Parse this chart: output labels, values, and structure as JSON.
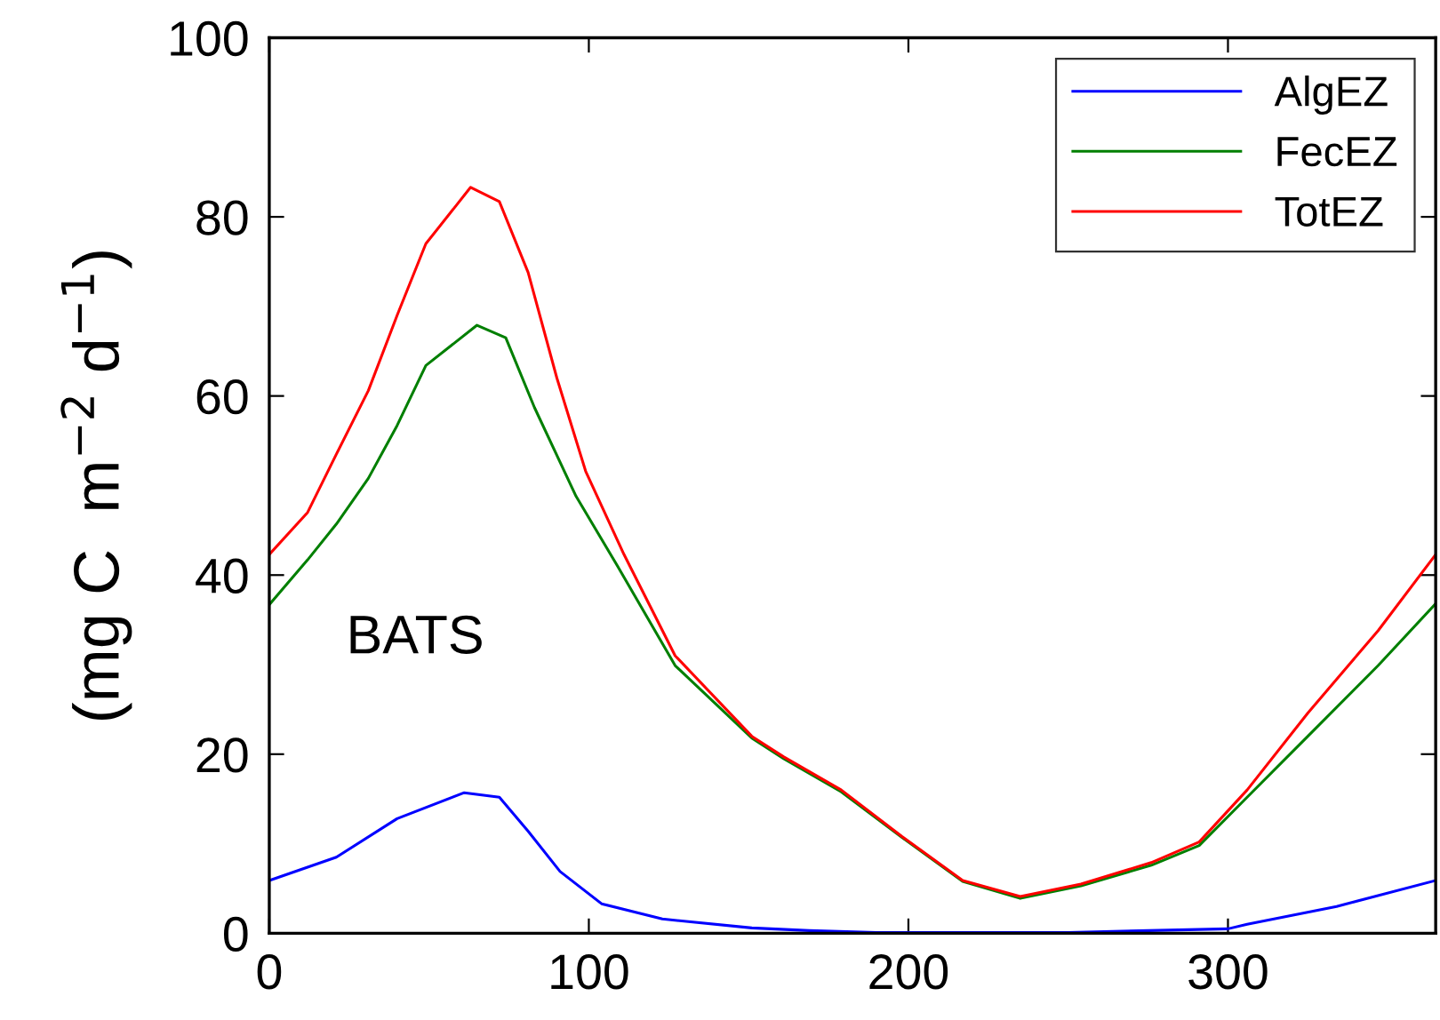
{
  "chart_data": {
    "type": "line",
    "ylabel": "(mg C  m$^{−2}$ d$^{−1}$)",
    "xlim": [
      0,
      365
    ],
    "ylim": [
      0,
      100
    ],
    "xticks": [
      0,
      100,
      200,
      300
    ],
    "yticks": [
      0,
      20,
      40,
      60,
      80,
      100
    ],
    "grid": false,
    "legend": "top right",
    "marker": "none",
    "line_style": "solid",
    "annotations": [
      "BATS"
    ],
    "series": [
      {
        "name": "AlgEZ",
        "color": "#0000ff",
        "x": [
          0,
          21,
          40,
          61,
          72,
          81,
          91,
          104,
          123,
          151,
          169,
          190,
          250,
          300,
          306,
          334,
          365
        ],
        "values": [
          5.9,
          8.5,
          12.8,
          15.7,
          15.2,
          11.4,
          6.9,
          3.3,
          1.6,
          0.6,
          0.3,
          0.1,
          0.1,
          0.5,
          1,
          3,
          5.9
        ]
      },
      {
        "name": "FecEZ",
        "color": "#007f00",
        "x": [
          0,
          12,
          21,
          31,
          40,
          49,
          65,
          74,
          83,
          96,
          109,
          127,
          151,
          161,
          179,
          198,
          217,
          235,
          254,
          276,
          291,
          306,
          325,
          347,
          365
        ],
        "values": [
          36.7,
          41.7,
          45.7,
          50.8,
          56.7,
          63.4,
          67.9,
          66.5,
          58.7,
          48.8,
          41,
          29.9,
          21.8,
          19.5,
          15.8,
          10.7,
          5.8,
          3.9,
          5.3,
          7.6,
          9.8,
          15.2,
          22,
          29.9,
          36.8
        ]
      },
      {
        "name": "TotEZ",
        "color": "#ff0000",
        "x": [
          0,
          12,
          21,
          31,
          40,
          49,
          63,
          72,
          81,
          90,
          99,
          111,
          127,
          151,
          161,
          179,
          198,
          217,
          235,
          254,
          276,
          291,
          306,
          325,
          347,
          365
        ],
        "values": [
          42.3,
          47,
          53.5,
          60.6,
          69,
          77,
          83.3,
          81.7,
          73.8,
          62,
          51.6,
          42.3,
          31,
          22,
          19.7,
          16,
          10.8,
          5.9,
          4.1,
          5.5,
          7.9,
          10.2,
          16,
          24.6,
          33.8,
          42.3
        ]
      }
    ]
  }
}
